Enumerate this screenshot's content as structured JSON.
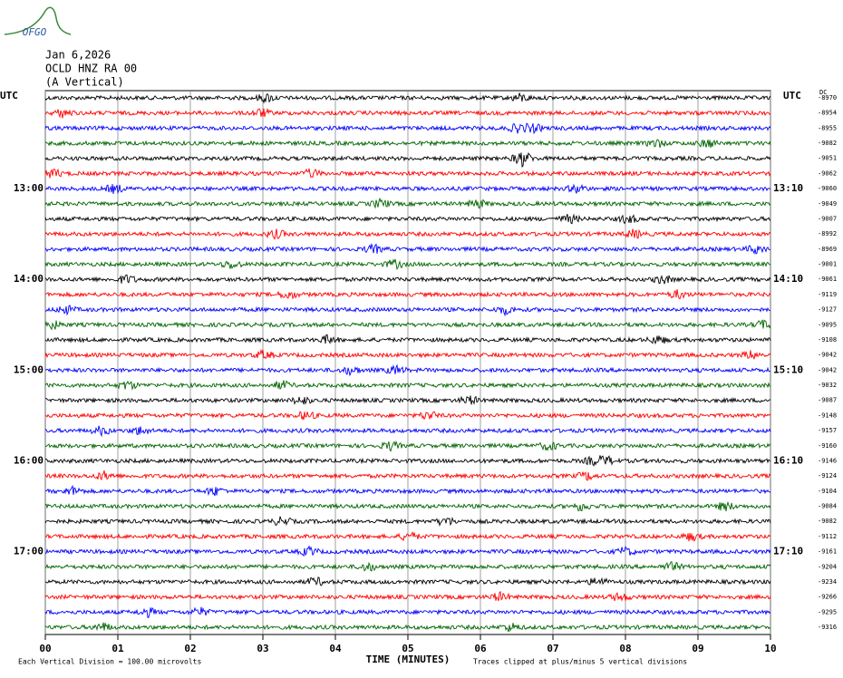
{
  "chart_data": {
    "type": "helicorder",
    "logo": "OFGO",
    "date": "Jan 6,2026",
    "station": "OCLD HNZ RA 00",
    "component": "(A Vertical)",
    "left_axis_title": "UTC",
    "right_axis_title": "UTC",
    "offset_title": "DC",
    "xlabel": "TIME (MINUTES)",
    "scale_note": "Each Vertical Division =  100.00 microvolts",
    "clip_note": "Traces clipped at plus/minus 5 vertical divisions",
    "xlim": [
      0,
      10
    ],
    "xticks": [
      {
        "value": 0,
        "label": "00"
      },
      {
        "value": 1,
        "label": "01"
      },
      {
        "value": 2,
        "label": "02"
      },
      {
        "value": 3,
        "label": "03"
      },
      {
        "value": 4,
        "label": "04"
      },
      {
        "value": 5,
        "label": "05"
      },
      {
        "value": 6,
        "label": "06"
      },
      {
        "value": 7,
        "label": "07"
      },
      {
        "value": 8,
        "label": "08"
      },
      {
        "value": 9,
        "label": "09"
      },
      {
        "value": 10,
        "label": "10"
      }
    ],
    "colors": [
      "#000000",
      "#ff0000",
      "#0000ff",
      "#006400"
    ],
    "left_times": [
      null,
      null,
      null,
      null,
      null,
      null,
      "13:00",
      null,
      null,
      null,
      null,
      null,
      "14:00",
      null,
      null,
      null,
      null,
      null,
      "15:00",
      null,
      null,
      null,
      null,
      null,
      "16:00",
      null,
      null,
      null,
      null,
      null,
      "17:00",
      null,
      null,
      null,
      null,
      null
    ],
    "right_times": [
      null,
      null,
      null,
      null,
      null,
      null,
      "13:10",
      null,
      null,
      null,
      null,
      null,
      "14:10",
      null,
      null,
      null,
      null,
      null,
      "15:10",
      null,
      null,
      null,
      null,
      null,
      "16:10",
      null,
      null,
      null,
      null,
      null,
      "17:10",
      null,
      null,
      null,
      null,
      null
    ],
    "offsets": [
      -8970,
      -8954,
      -8955,
      -9082,
      -9051,
      -9062,
      -9060,
      -9049,
      -9007,
      -8992,
      -8969,
      -9001,
      -9061,
      -9119,
      -9127,
      -9095,
      -9108,
      -9042,
      -9042,
      -9032,
      -9087,
      -9148,
      -9157,
      -9160,
      -9146,
      -9124,
      -9104,
      -9084,
      -9082,
      -9112,
      -9161,
      -9204,
      -9234,
      -9266,
      -9295,
      -9316
    ]
  }
}
